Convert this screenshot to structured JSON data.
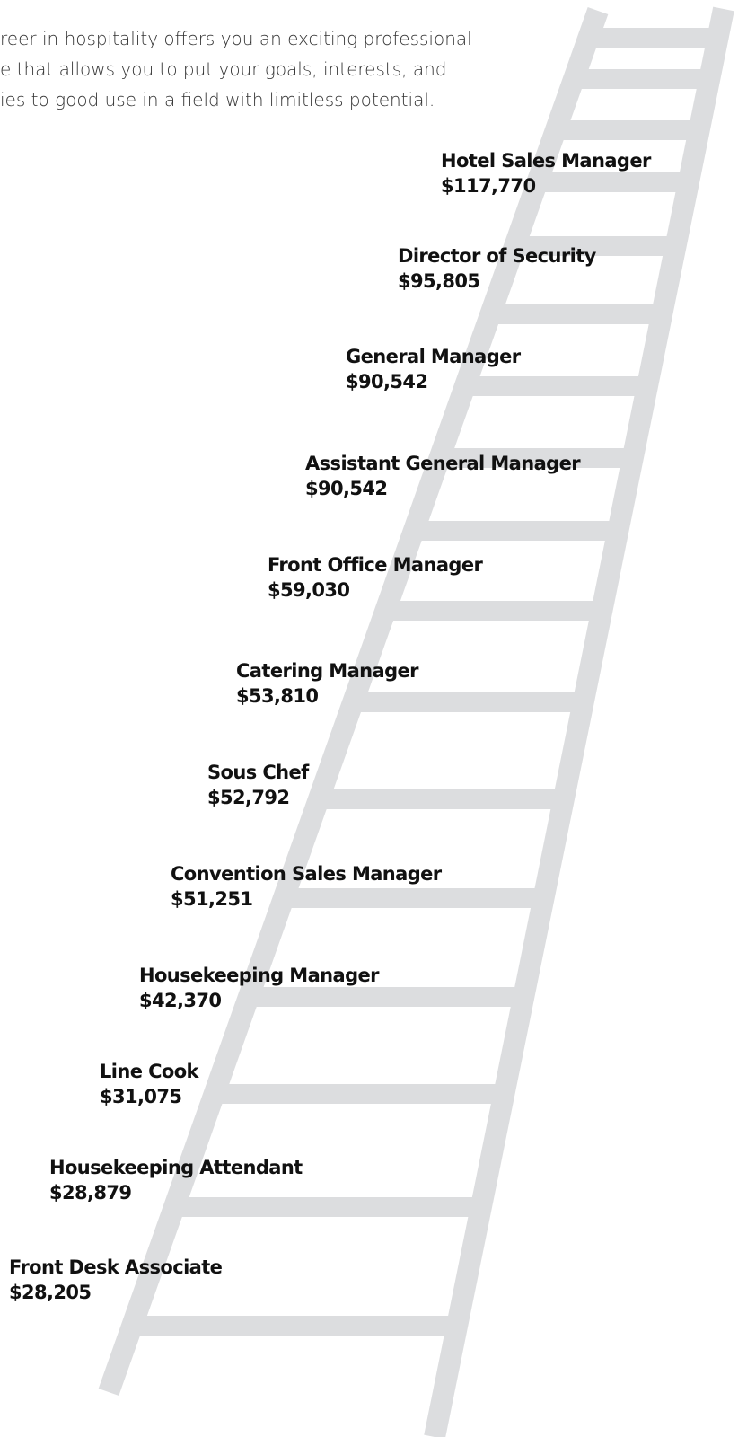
{
  "intro": [
    "reer in hospitality offers you an exciting professional",
    "e that allows you to put your goals, interests, and",
    "ies to good use in a field with limitless potential."
  ],
  "steps": [
    {
      "title": "Hotel Sales Manager",
      "salary": "$117,770"
    },
    {
      "title": "Director of Security",
      "salary": "$95,805"
    },
    {
      "title": "General Manager",
      "salary": "$90,542"
    },
    {
      "title": "Assistant General Manager",
      "salary": "$90,542"
    },
    {
      "title": "Front Office Manager",
      "salary": "$59,030"
    },
    {
      "title": "Catering Manager",
      "salary": "$53,810"
    },
    {
      "title": "Sous Chef",
      "salary": "$52,792"
    },
    {
      "title": "Convention Sales Manager",
      "salary": "$51,251"
    },
    {
      "title": "Housekeeping Manager",
      "salary": "$42,370"
    },
    {
      "title": "Line Cook",
      "salary": "$31,075"
    },
    {
      "title": "Housekeeping Attendant",
      "salary": "$28,879"
    },
    {
      "title": "Front Desk Associate",
      "salary": "$28,205"
    }
  ]
}
